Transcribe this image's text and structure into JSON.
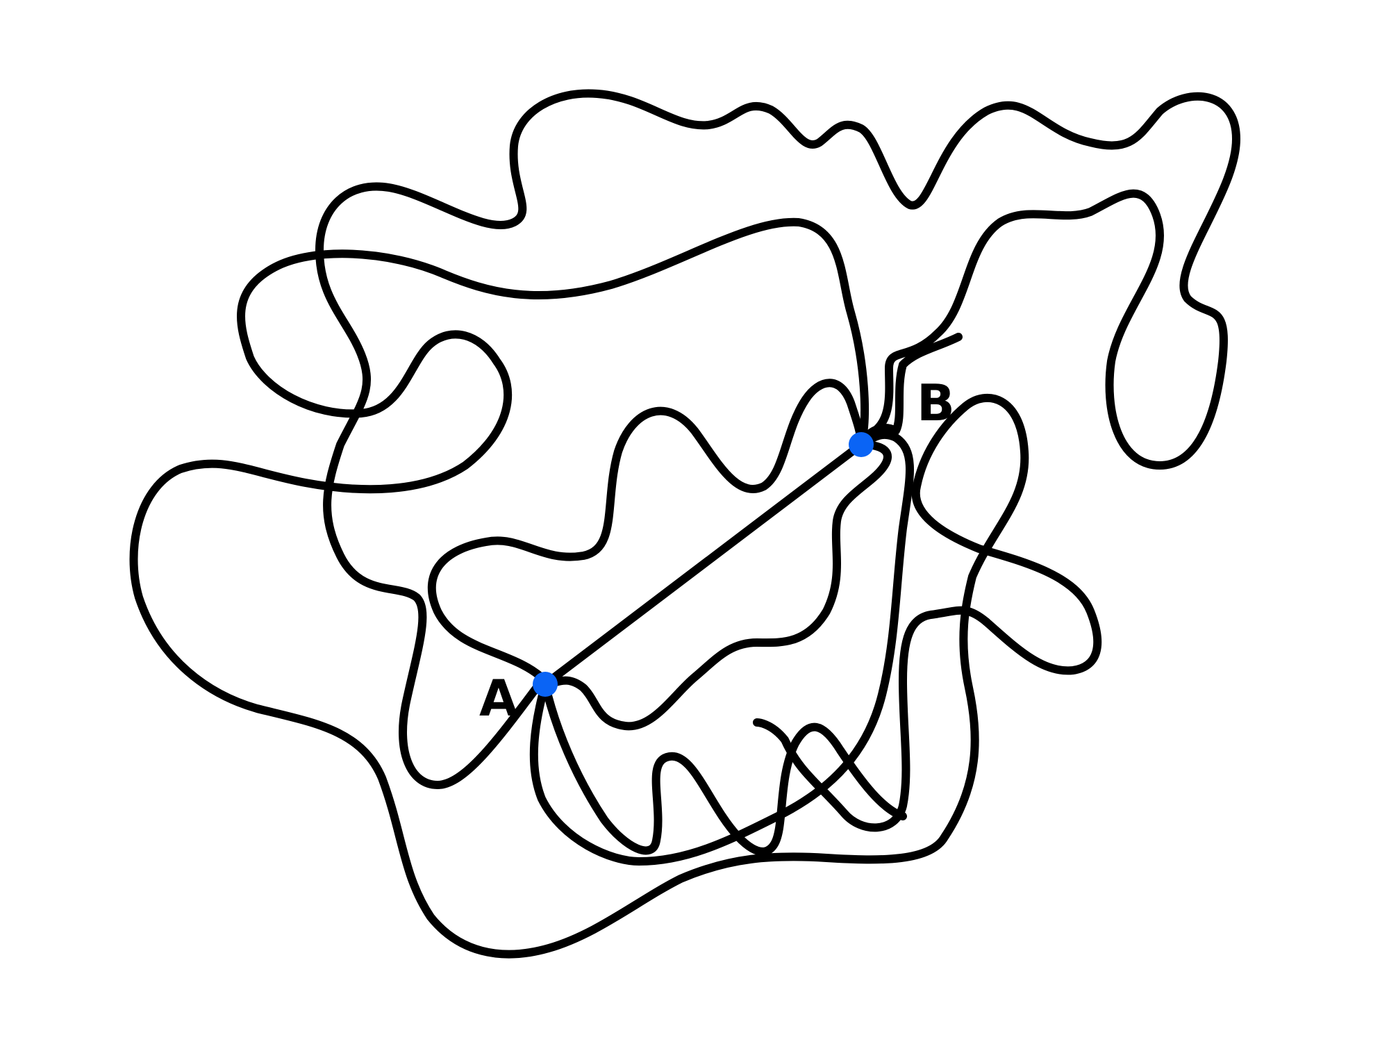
{
  "diagram": {
    "points": [
      {
        "id": "A",
        "label": "A",
        "color": "#0a64f5"
      },
      {
        "id": "B",
        "label": "B",
        "color": "#0a64f5"
      }
    ],
    "edges": [
      {
        "from": "A",
        "to": "B",
        "style": "straight"
      },
      {
        "from": "A",
        "to": "B",
        "style": "wiggly"
      },
      {
        "from": "A",
        "to": "B",
        "style": "wiggly"
      },
      {
        "from": "A",
        "to": "B",
        "style": "wiggly"
      },
      {
        "from": "A",
        "to": "B",
        "style": "wiggly"
      },
      {
        "from": "A",
        "to": "B",
        "style": "wiggly"
      }
    ],
    "stroke_color": "#000000",
    "background": "#ffffff"
  }
}
